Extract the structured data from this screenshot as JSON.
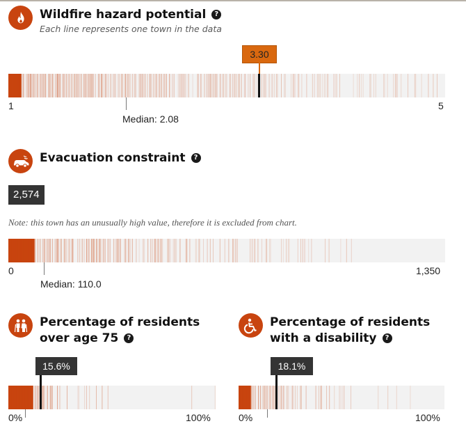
{
  "wildfire": {
    "icon": "flame-icon",
    "title": "Wildfire hazard potential",
    "help": "?",
    "subtitle": "Each line represents one town in the data",
    "value_label": "3.30",
    "value": 3.3,
    "min": 1,
    "max": 5,
    "min_label": "1",
    "max_label": "5",
    "median_label": "Median: 2.08",
    "median": 2.08
  },
  "evacuation": {
    "icon": "car-icon",
    "title": "Evacuation constraint",
    "help": "?",
    "value_label": "2,574",
    "note": "Note: this town has an unusually high value, therefore it is excluded from chart.",
    "min": 0,
    "max": 1350,
    "min_label": "0",
    "max_label": "1,350",
    "median_label": "Median: 110.0",
    "median": 110.0
  },
  "age75": {
    "icon": "elderly-couple-icon",
    "title_line1": "Percentage of residents",
    "title_line2": "over age 75",
    "help": "?",
    "value_label": "15.6%",
    "value": 15.6,
    "min": 0,
    "max": 100,
    "min_label": "0%",
    "max_label": "100%"
  },
  "disability": {
    "icon": "wheelchair-icon",
    "title_line1": "Percentage of residents",
    "title_line2": "with a disability",
    "help": "?",
    "value_label": "18.1%",
    "value": 18.1,
    "min": 0,
    "max": 100,
    "min_label": "0%",
    "max_label": "100%"
  },
  "colors": {
    "accent": "#c8440f",
    "highlight": "#d9680f",
    "dark": "#343434",
    "background": "#f2f2f2"
  }
}
